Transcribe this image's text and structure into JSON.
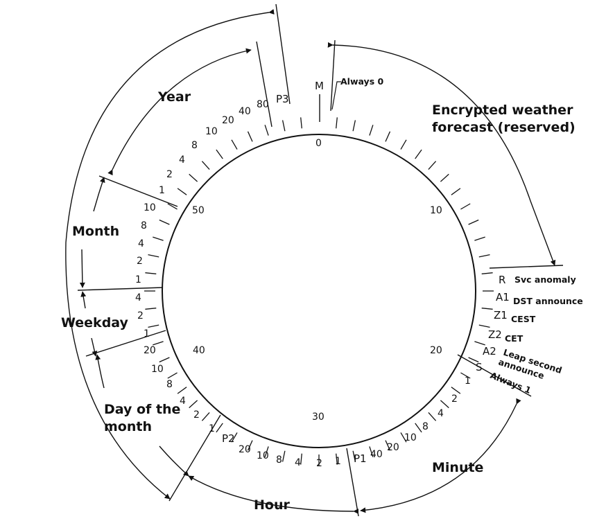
{
  "colors": {
    "ink": "#111111",
    "background": "#ffffff"
  },
  "ticks": 59,
  "dial_numbers": [
    "0",
    "10",
    "20",
    "30",
    "40",
    "50"
  ],
  "signal_letters": {
    "M": "M",
    "R": "R",
    "A1": "A1",
    "Z1": "Z1",
    "Z2": "Z2",
    "A2": "A2",
    "S": "S",
    "P1": "P1",
    "P2": "P2",
    "P3": "P3"
  },
  "weights": {
    "minute": [
      "1",
      "2",
      "4",
      "8",
      "10",
      "20",
      "40"
    ],
    "hour": [
      "1",
      "2",
      "4",
      "8",
      "10",
      "20"
    ],
    "day": [
      "1",
      "2",
      "4",
      "8",
      "10",
      "20"
    ],
    "weekday": [
      "1",
      "2",
      "4"
    ],
    "month": [
      "1",
      "2",
      "4",
      "8",
      "10"
    ],
    "year": [
      "1",
      "2",
      "4",
      "8",
      "10",
      "20",
      "40",
      "80"
    ]
  },
  "descriptions": {
    "always0": "Always 0",
    "svc": "Svc anomaly",
    "dst": "DST announce",
    "cest": "CEST",
    "cet": "CET",
    "leap1": "Leap second",
    "leap2": "announce",
    "always1": "Always 1"
  },
  "sections": {
    "weather_line1": "Encrypted weather",
    "weather_line2": "forecast (reserved)",
    "minute": "Minute",
    "hour": "Hour",
    "day_line1": "Day of the",
    "day_line2": "month",
    "weekday": "Weekday",
    "month": "Month",
    "year": "Year"
  }
}
